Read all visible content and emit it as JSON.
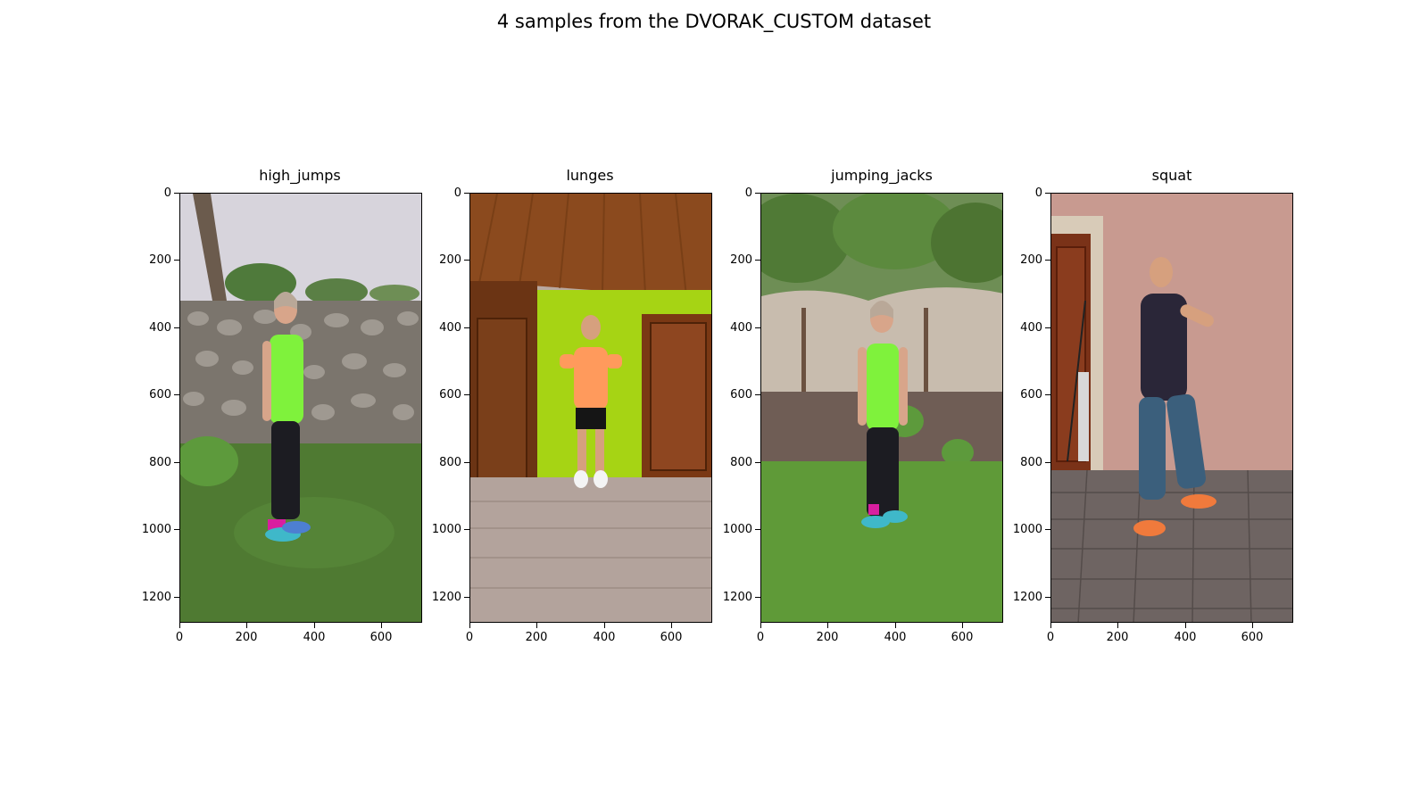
{
  "figure": {
    "title": "4 samples from the DVORAK_CUSTOM dataset"
  },
  "panels": [
    {
      "title": "high_jumps",
      "scene": "outdoor-stone-wall",
      "person_colors": {
        "top": "#7ff23c",
        "bottom": "#1c1c22",
        "skin": "#d8a58a",
        "shoes": "#3fb8c9"
      }
    },
    {
      "title": "lunges",
      "scene": "indoor-wood-room",
      "person_colors": {
        "top": "#ff9a5c",
        "bottom": "#151515",
        "skin": "#d6a07e",
        "shoes": "#f4f4f4"
      }
    },
    {
      "title": "jumping_jacks",
      "scene": "outdoor-concrete-fence",
      "person_colors": {
        "top": "#7ff23c",
        "bottom": "#1c1c22",
        "skin": "#d8a58a",
        "shoes": "#3fb8c9"
      }
    },
    {
      "title": "squat",
      "scene": "outdoor-pink-wall",
      "person_colors": {
        "top": "#2a2638",
        "bottom": "#3b5f7c",
        "skin": "#d6a07e",
        "shoes": "#f07a3c"
      }
    }
  ],
  "axes": {
    "y_ticks": [
      "0",
      "200",
      "400",
      "600",
      "800",
      "1000",
      "1200"
    ],
    "x_ticks": [
      "0",
      "200",
      "400",
      "600"
    ]
  }
}
